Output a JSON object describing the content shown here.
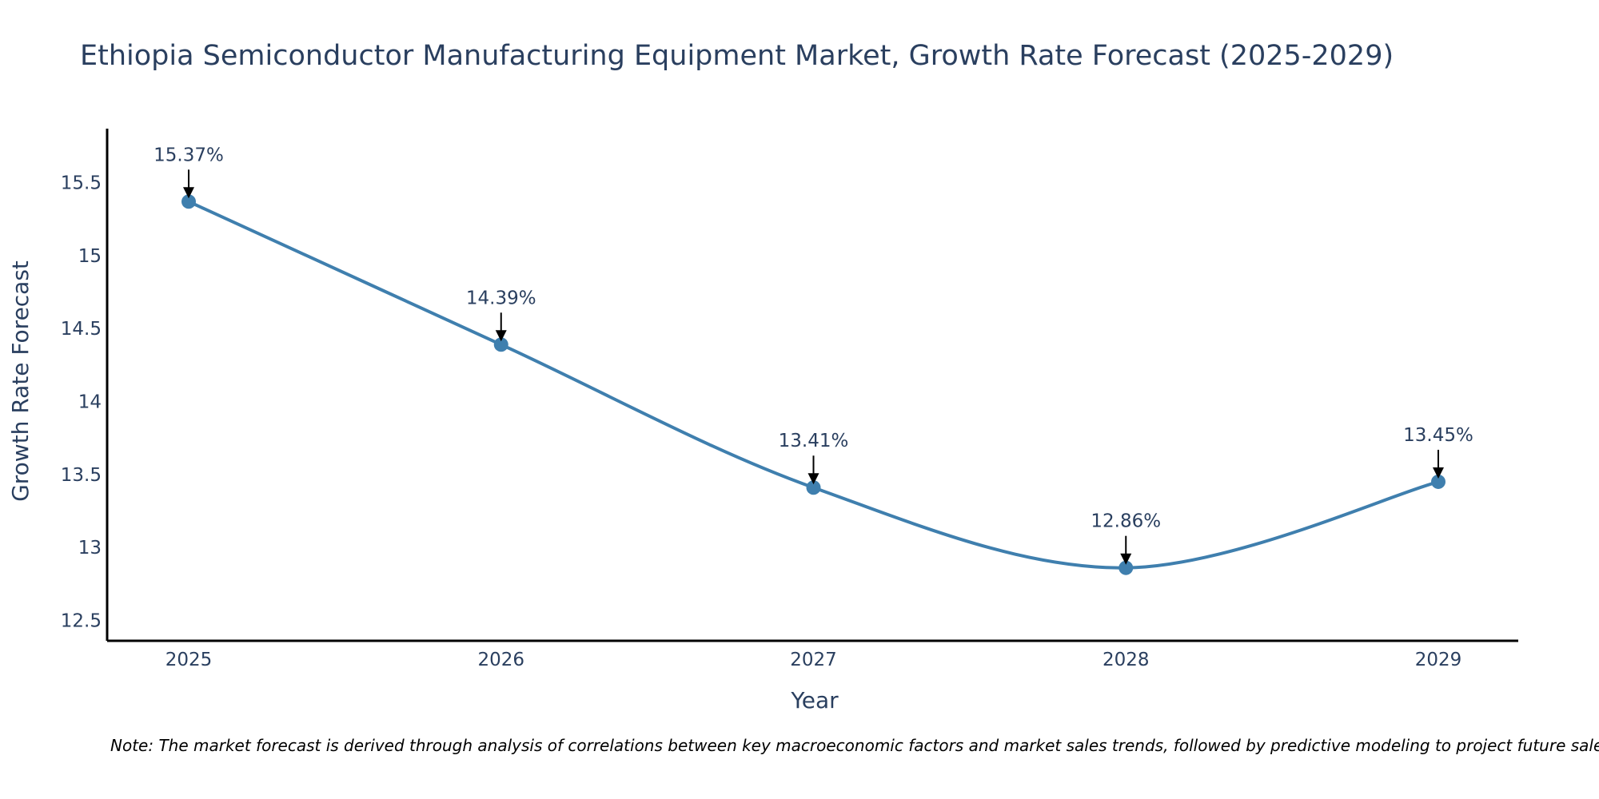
{
  "chart_data": {
    "type": "line",
    "title": "Ethiopia Semiconductor Manufacturing Equipment Market, Growth Rate Forecast (2025-2029)",
    "xlabel": "Year",
    "ylabel": "Growth Rate Forecast",
    "categories": [
      "2025",
      "2026",
      "2027",
      "2028",
      "2029"
    ],
    "series": [
      {
        "name": "Growth Rate Forecast",
        "values": [
          15.37,
          14.39,
          13.41,
          12.86,
          13.45
        ],
        "labels": [
          "15.37%",
          "14.39%",
          "13.41%",
          "12.86%",
          "13.45%"
        ],
        "color": "#3f7fae"
      }
    ],
    "yticks": [
      "12.5",
      "13",
      "13.5",
      "14",
      "14.5",
      "15",
      "15.5"
    ],
    "ytick_values": [
      12.5,
      13,
      13.5,
      14,
      14.5,
      15,
      15.5
    ],
    "ylim": [
      12.36,
      15.87
    ],
    "grid": false,
    "legend": "none",
    "annotation_color": "#000000",
    "axis_color": "#000000",
    "text_color": "#2a3f5f"
  },
  "note": "Note: The market forecast is derived through analysis of correlations between key macroeconomic factors and market sales trends, followed by predictive modeling to project future sales."
}
